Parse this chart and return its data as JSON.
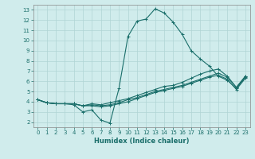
{
  "xlabel": "Humidex (Indice chaleur)",
  "xlim": [
    -0.5,
    23.5
  ],
  "ylim": [
    1.5,
    13.5
  ],
  "xticks": [
    0,
    1,
    2,
    3,
    4,
    5,
    6,
    7,
    8,
    9,
    10,
    11,
    12,
    13,
    14,
    15,
    16,
    17,
    18,
    19,
    20,
    21,
    22,
    23
  ],
  "yticks": [
    2,
    3,
    4,
    5,
    6,
    7,
    8,
    9,
    10,
    11,
    12,
    13
  ],
  "bg_color": "#d0ecec",
  "grid_color": "#b0d4d4",
  "line_color": "#1a6e6a",
  "lines": [
    {
      "x": [
        0,
        1,
        2,
        3,
        4,
        5,
        6,
        7,
        8,
        9,
        10,
        11,
        12,
        13,
        14,
        15,
        16,
        17,
        18,
        19,
        20,
        21,
        22,
        23
      ],
      "y": [
        4.2,
        3.9,
        3.8,
        3.8,
        3.7,
        3.0,
        3.2,
        2.2,
        1.9,
        5.3,
        10.4,
        11.9,
        12.1,
        13.1,
        12.7,
        11.8,
        10.6,
        9.0,
        8.2,
        7.5,
        6.5,
        6.1,
        5.3,
        6.4
      ]
    },
    {
      "x": [
        0,
        1,
        2,
        3,
        4,
        5,
        6,
        7,
        8,
        9,
        10,
        11,
        12,
        13,
        14,
        15,
        16,
        17,
        18,
        19,
        20,
        21,
        22,
        23
      ],
      "y": [
        4.2,
        3.9,
        3.8,
        3.8,
        3.8,
        3.6,
        3.8,
        3.7,
        3.9,
        4.1,
        4.3,
        4.6,
        4.9,
        5.2,
        5.5,
        5.6,
        5.9,
        6.3,
        6.7,
        7.0,
        7.2,
        6.5,
        5.4,
        6.5
      ]
    },
    {
      "x": [
        0,
        1,
        2,
        3,
        4,
        5,
        6,
        7,
        8,
        9,
        10,
        11,
        12,
        13,
        14,
        15,
        16,
        17,
        18,
        19,
        20,
        21,
        22,
        23
      ],
      "y": [
        4.2,
        3.9,
        3.8,
        3.8,
        3.8,
        3.6,
        3.7,
        3.6,
        3.7,
        3.9,
        4.2,
        4.4,
        4.7,
        5.0,
        5.2,
        5.4,
        5.6,
        5.9,
        6.2,
        6.5,
        6.8,
        6.4,
        5.4,
        6.5
      ]
    },
    {
      "x": [
        0,
        1,
        2,
        3,
        4,
        5,
        6,
        7,
        8,
        9,
        10,
        11,
        12,
        13,
        14,
        15,
        16,
        17,
        18,
        19,
        20,
        21,
        22,
        23
      ],
      "y": [
        4.2,
        3.9,
        3.8,
        3.8,
        3.8,
        3.6,
        3.6,
        3.5,
        3.6,
        3.8,
        4.0,
        4.3,
        4.6,
        4.9,
        5.1,
        5.3,
        5.5,
        5.8,
        6.1,
        6.4,
        6.6,
        6.2,
        5.2,
        6.3
      ]
    }
  ]
}
